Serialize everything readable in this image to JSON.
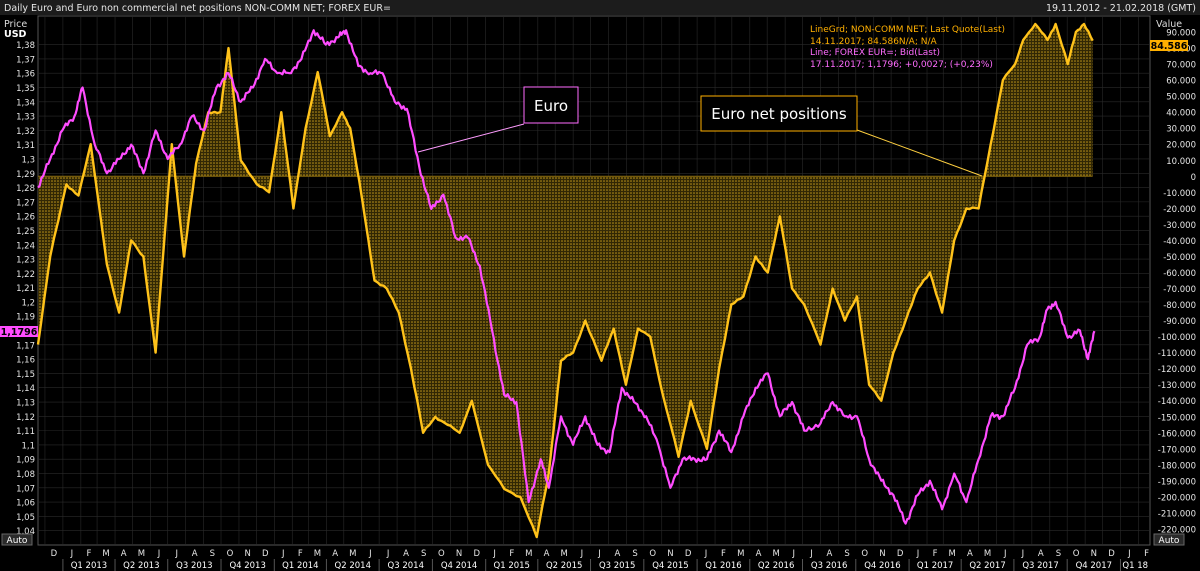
{
  "header": {
    "title": "Daily Euro and Euro non commercial net positions NON-COMM NET; FOREX EUR=",
    "date_range": "19.11.2012 - 21.02.2018 (GMT)"
  },
  "axes": {
    "left_title": "Price",
    "left_unit": "USD",
    "right_title": "Value",
    "auto_left": "Auto",
    "auto_right": "Auto"
  },
  "legend": {
    "series1_name": "LineGrd; NON-COMM NET; Last Quote(Last)",
    "series1_values": "14.11.2017; 84.586N/A; N/A",
    "series2_name": "Line; FOREX EUR=; Bid(Last)",
    "series2_values": "17.11.2017; 1,1796; +0,0027; (+0,23%)"
  },
  "callouts": {
    "euro": "Euro",
    "net_positions": "Euro net positions"
  },
  "last_values": {
    "left": "1,1796",
    "right": "84.586"
  },
  "colors": {
    "background": "#000000",
    "euro_line": "#ff4cff",
    "net_line": "#ffc21a",
    "fill": "#c89a12",
    "grid": "#2a2a2a",
    "text": "#cccccc"
  },
  "chart_data": {
    "type": "line",
    "x_range": [
      "2012-11-19",
      "2018-02-21"
    ],
    "y_left_range": [
      1.03,
      1.4
    ],
    "y_right_range": [
      -230000,
      100000
    ],
    "y_left_ticks": [
      "1,04",
      "1,05",
      "1,06",
      "1,07",
      "1,08",
      "1,09",
      "1,1",
      "1,11",
      "1,12",
      "1,13",
      "1,14",
      "1,15",
      "1,16",
      "1,17",
      "1,18",
      "1,19",
      "1,2",
      "1,21",
      "1,22",
      "1,23",
      "1,24",
      "1,25",
      "1,26",
      "1,27",
      "1,28",
      "1,29",
      "1,3",
      "1,31",
      "1,32",
      "1,33",
      "1,34",
      "1,35",
      "1,36",
      "1,37",
      "1,38"
    ],
    "y_right_ticks": [
      "-220.000",
      "-210.000",
      "-200.000",
      "-190.000",
      "-180.000",
      "-170.000",
      "-160.000",
      "-150.000",
      "-140.000",
      "-130.000",
      "-120.000",
      "-110.000",
      "-100.000",
      "-90.000",
      "-80.000",
      "-70.000",
      "-60.000",
      "-50.000",
      "-40.000",
      "-30.000",
      "-20.000",
      "-10.000",
      "0",
      "10.000",
      "20.000",
      "30.000",
      "40.000",
      "50.000",
      "60.000",
      "70.000",
      "80.000",
      "90.000"
    ],
    "month_ticks": [
      "D",
      "J",
      "F",
      "M",
      "A",
      "M",
      "J",
      "J",
      "A",
      "S",
      "O",
      "N",
      "D",
      "J",
      "F",
      "M",
      "A",
      "M",
      "J",
      "J",
      "A",
      "S",
      "O",
      "N",
      "D",
      "J",
      "F",
      "M",
      "A",
      "M",
      "J",
      "J",
      "A",
      "S",
      "O",
      "N",
      "D",
      "J",
      "F",
      "M",
      "A",
      "M",
      "J",
      "J",
      "A",
      "S",
      "O",
      "N",
      "D",
      "J",
      "F",
      "M",
      "A",
      "M",
      "J",
      "J",
      "A",
      "S",
      "O",
      "N",
      "D",
      "J",
      "F"
    ],
    "quarter_ticks": [
      "Q1 2013",
      "Q2 2013",
      "Q3 2013",
      "Q4 2013",
      "Q1 2014",
      "Q2 2014",
      "Q3 2014",
      "Q4 2014",
      "Q1 2015",
      "Q2 2015",
      "Q3 2015",
      "Q4 2015",
      "Q1 2016",
      "Q2 2016",
      "Q3 2016",
      "Q4 2016",
      "Q1 2017",
      "Q2 2017",
      "Q3 2017",
      "Q4 2017",
      "Q1 18"
    ],
    "grid": true,
    "series": [
      {
        "name": "NON-COMM NET",
        "axis": "right",
        "style": "line-fill",
        "points": [
          [
            "2012-11-19",
            -105000
          ],
          [
            "2012-12-10",
            -50000
          ],
          [
            "2013-01-07",
            -5000
          ],
          [
            "2013-01-28",
            -12000
          ],
          [
            "2013-02-18",
            20000
          ],
          [
            "2013-03-18",
            -55000
          ],
          [
            "2013-04-08",
            -85000
          ],
          [
            "2013-04-29",
            -40000
          ],
          [
            "2013-05-20",
            -50000
          ],
          [
            "2013-06-10",
            -110000
          ],
          [
            "2013-07-08",
            20000
          ],
          [
            "2013-07-29",
            -50000
          ],
          [
            "2013-08-19",
            8000
          ],
          [
            "2013-09-09",
            40000
          ],
          [
            "2013-09-30",
            40000
          ],
          [
            "2013-10-14",
            80000
          ],
          [
            "2013-11-04",
            10000
          ],
          [
            "2013-12-02",
            -5000
          ],
          [
            "2013-12-23",
            -10000
          ],
          [
            "2014-01-13",
            40000
          ],
          [
            "2014-02-03",
            -20000
          ],
          [
            "2014-02-24",
            30000
          ],
          [
            "2014-03-17",
            65000
          ],
          [
            "2014-04-07",
            25000
          ],
          [
            "2014-04-28",
            40000
          ],
          [
            "2014-05-12",
            30000
          ],
          [
            "2014-06-02",
            -15000
          ],
          [
            "2014-06-23",
            -65000
          ],
          [
            "2014-07-14",
            -70000
          ],
          [
            "2014-08-04",
            -85000
          ],
          [
            "2014-08-25",
            -120000
          ],
          [
            "2014-09-15",
            -160000
          ],
          [
            "2014-10-06",
            -150000
          ],
          [
            "2014-10-27",
            -155000
          ],
          [
            "2014-11-17",
            -160000
          ],
          [
            "2014-12-08",
            -140000
          ],
          [
            "2015-01-05",
            -180000
          ],
          [
            "2015-02-02",
            -195000
          ],
          [
            "2015-03-02",
            -200000
          ],
          [
            "2015-03-30",
            -225000
          ],
          [
            "2015-04-20",
            -185000
          ],
          [
            "2015-05-11",
            -115000
          ],
          [
            "2015-06-01",
            -110000
          ],
          [
            "2015-06-22",
            -90000
          ],
          [
            "2015-07-20",
            -115000
          ],
          [
            "2015-08-10",
            -95000
          ],
          [
            "2015-08-31",
            -130000
          ],
          [
            "2015-09-21",
            -95000
          ],
          [
            "2015-10-12",
            -100000
          ],
          [
            "2015-11-02",
            -135000
          ],
          [
            "2015-11-30",
            -175000
          ],
          [
            "2015-12-21",
            -140000
          ],
          [
            "2016-01-18",
            -170000
          ],
          [
            "2016-02-08",
            -120000
          ],
          [
            "2016-02-29",
            -80000
          ],
          [
            "2016-03-21",
            -75000
          ],
          [
            "2016-04-11",
            -50000
          ],
          [
            "2016-05-02",
            -60000
          ],
          [
            "2016-05-23",
            -25000
          ],
          [
            "2016-06-13",
            -70000
          ],
          [
            "2016-07-04",
            -80000
          ],
          [
            "2016-08-01",
            -105000
          ],
          [
            "2016-08-22",
            -70000
          ],
          [
            "2016-09-12",
            -90000
          ],
          [
            "2016-10-03",
            -75000
          ],
          [
            "2016-10-24",
            -130000
          ],
          [
            "2016-11-14",
            -140000
          ],
          [
            "2016-12-05",
            -110000
          ],
          [
            "2016-12-26",
            -90000
          ],
          [
            "2017-01-16",
            -70000
          ],
          [
            "2017-02-06",
            -60000
          ],
          [
            "2017-02-27",
            -85000
          ],
          [
            "2017-03-20",
            -40000
          ],
          [
            "2017-04-10",
            -20000
          ],
          [
            "2017-05-01",
            -20000
          ],
          [
            "2017-05-22",
            20000
          ],
          [
            "2017-06-12",
            60000
          ],
          [
            "2017-07-03",
            70000
          ],
          [
            "2017-07-17",
            85000
          ],
          [
            "2017-08-07",
            95000
          ],
          [
            "2017-08-28",
            85000
          ],
          [
            "2017-09-11",
            95000
          ],
          [
            "2017-10-02",
            70000
          ],
          [
            "2017-10-16",
            90000
          ],
          [
            "2017-10-30",
            95000
          ],
          [
            "2017-11-14",
            84586
          ]
        ]
      },
      {
        "name": "FOREX EUR=",
        "axis": "left",
        "style": "line",
        "points": [
          [
            "2012-11-19",
            1.28
          ],
          [
            "2012-12-10",
            1.3
          ],
          [
            "2012-12-31",
            1.32
          ],
          [
            "2013-01-21",
            1.33
          ],
          [
            "2013-02-04",
            1.35
          ],
          [
            "2013-02-25",
            1.31
          ],
          [
            "2013-03-18",
            1.29
          ],
          [
            "2013-04-08",
            1.3
          ],
          [
            "2013-04-29",
            1.31
          ],
          [
            "2013-05-20",
            1.29
          ],
          [
            "2013-06-10",
            1.32
          ],
          [
            "2013-07-01",
            1.3
          ],
          [
            "2013-07-22",
            1.31
          ],
          [
            "2013-08-12",
            1.33
          ],
          [
            "2013-09-02",
            1.32
          ],
          [
            "2013-09-23",
            1.35
          ],
          [
            "2013-10-14",
            1.36
          ],
          [
            "2013-11-04",
            1.34
          ],
          [
            "2013-11-25",
            1.35
          ],
          [
            "2013-12-16",
            1.37
          ],
          [
            "2014-01-06",
            1.36
          ],
          [
            "2014-01-27",
            1.36
          ],
          [
            "2014-02-17",
            1.37
          ],
          [
            "2014-03-10",
            1.39
          ],
          [
            "2014-03-31",
            1.38
          ],
          [
            "2014-04-21",
            1.385
          ],
          [
            "2014-05-05",
            1.39
          ],
          [
            "2014-05-26",
            1.365
          ],
          [
            "2014-06-16",
            1.36
          ],
          [
            "2014-07-07",
            1.36
          ],
          [
            "2014-07-28",
            1.34
          ],
          [
            "2014-08-18",
            1.335
          ],
          [
            "2014-09-08",
            1.295
          ],
          [
            "2014-09-29",
            1.265
          ],
          [
            "2014-10-20",
            1.275
          ],
          [
            "2014-11-10",
            1.245
          ],
          [
            "2014-12-01",
            1.245
          ],
          [
            "2014-12-22",
            1.225
          ],
          [
            "2015-01-12",
            1.18
          ],
          [
            "2015-02-02",
            1.135
          ],
          [
            "2015-02-23",
            1.13
          ],
          [
            "2015-03-16",
            1.06
          ],
          [
            "2015-04-06",
            1.09
          ],
          [
            "2015-04-20",
            1.07
          ],
          [
            "2015-05-11",
            1.12
          ],
          [
            "2015-06-01",
            1.1
          ],
          [
            "2015-06-22",
            1.12
          ],
          [
            "2015-07-13",
            1.1
          ],
          [
            "2015-08-03",
            1.095
          ],
          [
            "2015-08-24",
            1.14
          ],
          [
            "2015-09-14",
            1.13
          ],
          [
            "2015-10-05",
            1.12
          ],
          [
            "2015-10-26",
            1.1
          ],
          [
            "2015-11-16",
            1.07
          ],
          [
            "2015-12-07",
            1.09
          ],
          [
            "2015-12-28",
            1.09
          ],
          [
            "2016-01-18",
            1.09
          ],
          [
            "2016-02-08",
            1.11
          ],
          [
            "2016-02-29",
            1.095
          ],
          [
            "2016-03-21",
            1.12
          ],
          [
            "2016-04-11",
            1.14
          ],
          [
            "2016-05-02",
            1.15
          ],
          [
            "2016-05-23",
            1.12
          ],
          [
            "2016-06-13",
            1.13
          ],
          [
            "2016-07-04",
            1.11
          ],
          [
            "2016-08-01",
            1.115
          ],
          [
            "2016-08-22",
            1.13
          ],
          [
            "2016-09-12",
            1.12
          ],
          [
            "2016-10-03",
            1.12
          ],
          [
            "2016-10-24",
            1.09
          ],
          [
            "2016-11-14",
            1.075
          ],
          [
            "2016-12-05",
            1.065
          ],
          [
            "2016-12-26",
            1.045
          ],
          [
            "2017-01-16",
            1.065
          ],
          [
            "2017-02-06",
            1.075
          ],
          [
            "2017-02-27",
            1.055
          ],
          [
            "2017-03-20",
            1.08
          ],
          [
            "2017-04-10",
            1.06
          ],
          [
            "2017-05-01",
            1.09
          ],
          [
            "2017-05-22",
            1.12
          ],
          [
            "2017-06-12",
            1.12
          ],
          [
            "2017-07-03",
            1.14
          ],
          [
            "2017-07-24",
            1.17
          ],
          [
            "2017-08-14",
            1.175
          ],
          [
            "2017-08-28",
            1.195
          ],
          [
            "2017-09-11",
            1.2
          ],
          [
            "2017-10-02",
            1.175
          ],
          [
            "2017-10-23",
            1.18
          ],
          [
            "2017-11-06",
            1.16
          ],
          [
            "2017-11-17",
            1.1796
          ]
        ]
      }
    ]
  }
}
